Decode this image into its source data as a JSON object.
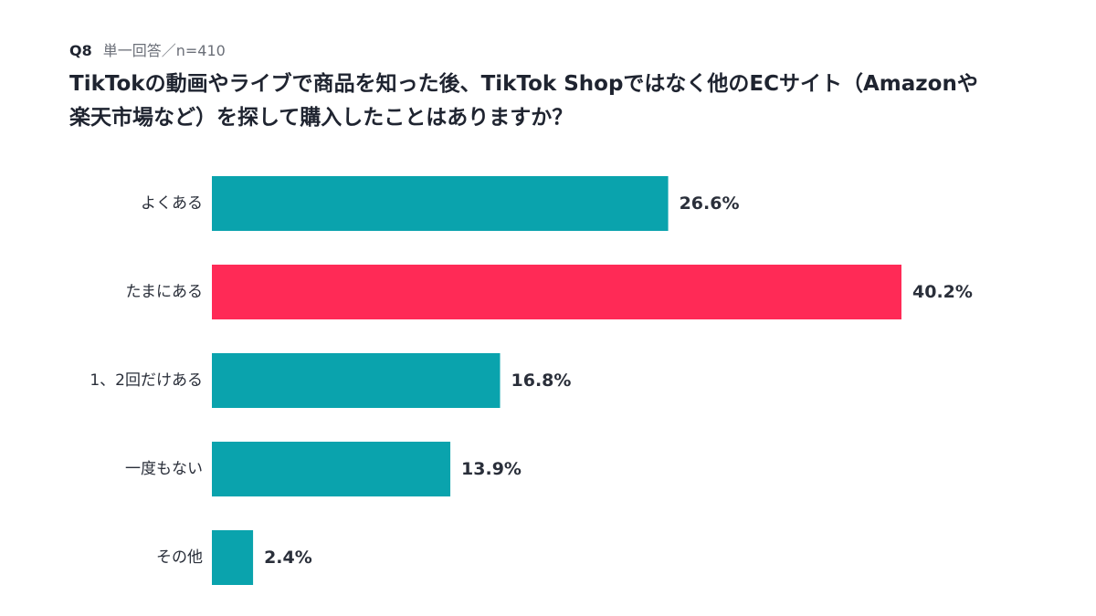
{
  "question": {
    "number": "Q8",
    "meta": "単一回答／n=410",
    "title_lines": [
      "TikTokの動画やライブで商品を知った後、TikTok Shopではなく他のECサイト（Amazonや",
      "楽天市場など）を探して購入したことはありますか？"
    ]
  },
  "chart_data": {
    "type": "bar",
    "orientation": "horizontal",
    "categories": [
      "よくある",
      "たまにある",
      "1、2回だけある",
      "一度もない",
      "その他"
    ],
    "values": [
      26.6,
      40.2,
      16.8,
      13.9,
      2.4
    ],
    "value_labels": [
      "26.6%",
      "40.2%",
      "16.8%",
      "13.9%",
      "2.4%"
    ],
    "unit": "%",
    "xlim": [
      0,
      40.2
    ],
    "grid": false,
    "legend": "none",
    "colors": {
      "default": "#0aa3ad",
      "highlight": "#ff2a56",
      "highlight_index": 1
    }
  }
}
